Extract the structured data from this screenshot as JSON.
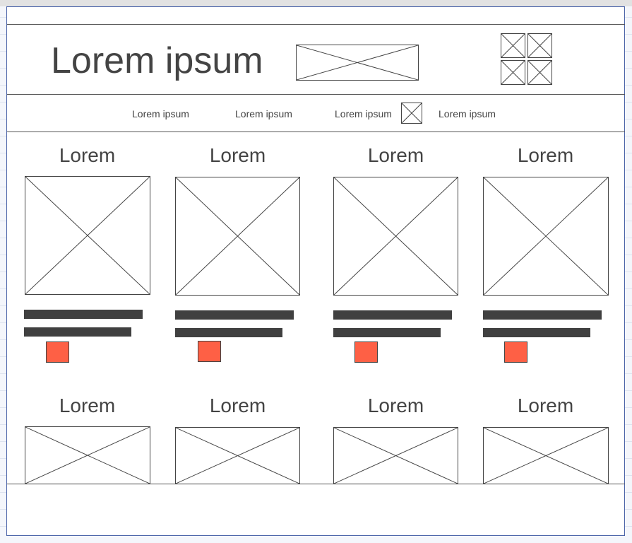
{
  "header": {
    "title": "Lorem ipsum"
  },
  "nav": {
    "items": [
      "Lorem ipsum",
      "Lorem ipsum",
      "Lorem ipsum",
      "Lorem ipsum"
    ]
  },
  "cards": [
    {
      "title": "Lorem"
    },
    {
      "title": "Lorem"
    },
    {
      "title": "Lorem"
    },
    {
      "title": "Lorem"
    }
  ],
  "cards_row2": [
    {
      "title": "Lorem"
    },
    {
      "title": "Lorem"
    },
    {
      "title": "Lorem"
    },
    {
      "title": "Lorem"
    }
  ],
  "colors": {
    "accent": "#fe6045",
    "bar": "#404040",
    "stroke": "#444444"
  }
}
